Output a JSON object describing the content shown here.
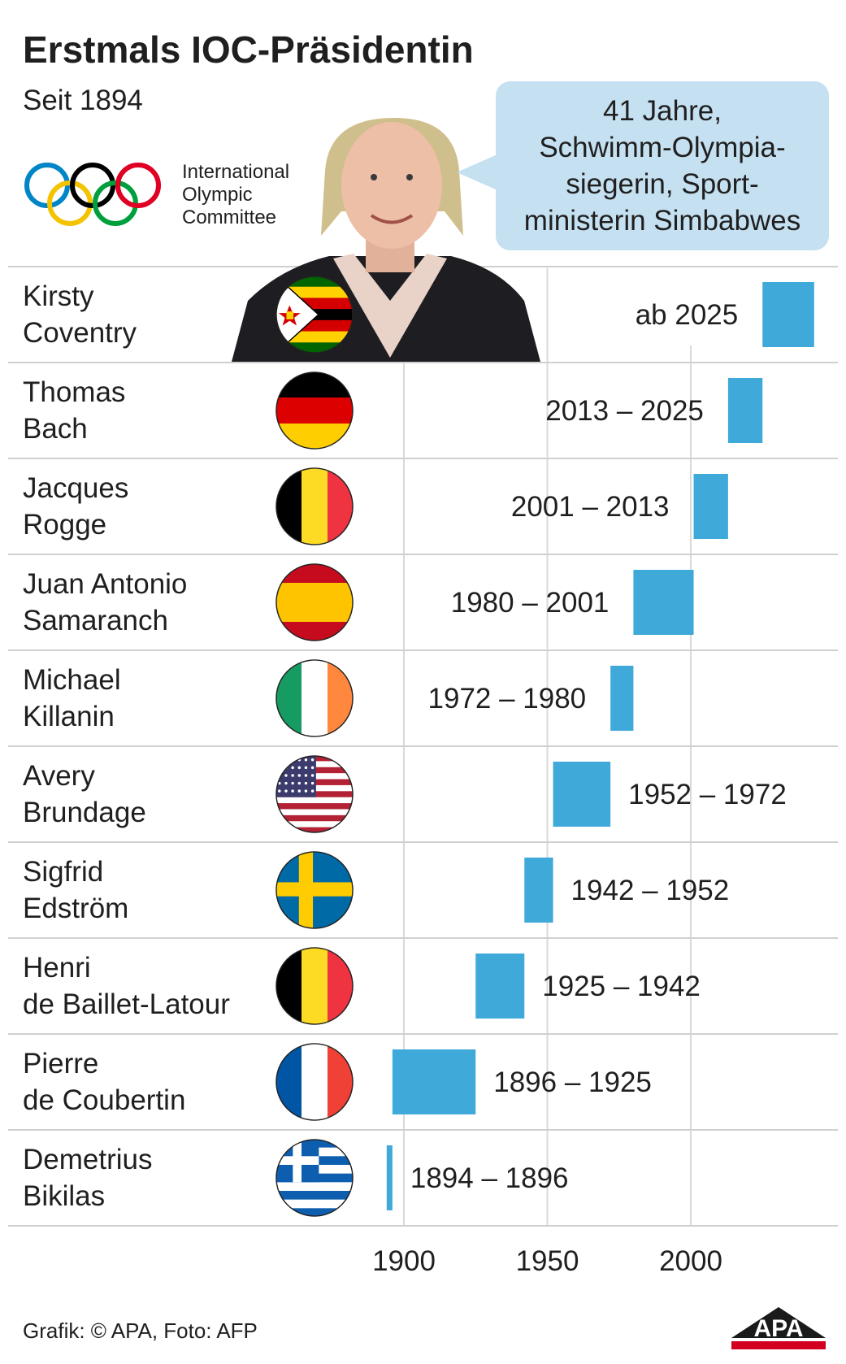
{
  "header": {
    "title": "Erstmals IOC-Präsidentin",
    "subtitle": "Seit 1894"
  },
  "ioc": {
    "text_lines": [
      "International",
      "Olympic",
      "Committee"
    ],
    "ring_colors": [
      "#0085C7",
      "#F4C300",
      "#000000",
      "#009F3D",
      "#DF0024"
    ]
  },
  "bubble": {
    "lines": [
      "41 Jahre,",
      "Schwimm-Olympia-",
      "siegerin, Sport-",
      "ministerin Simbabwes"
    ]
  },
  "colors": {
    "bar": "#3fa9d9",
    "grid": "#d9d9d9",
    "divider": "#d0d0d0",
    "bubble": "#c5e0f0",
    "text": "#1f1f1f"
  },
  "chart_data": {
    "type": "bar",
    "orientation": "horizontal-range",
    "xlim": [
      1894,
      2045
    ],
    "x_ticks": [
      1900,
      1950,
      2000
    ],
    "grid": true,
    "series": [
      {
        "first_name": "Kirsty",
        "last_name": "Coventry",
        "flag": "zimbabwe-flag",
        "start": 2025,
        "end": 2043,
        "label": "ab 2025"
      },
      {
        "first_name": "Thomas",
        "last_name": "Bach",
        "flag": "germany-flag",
        "start": 2013,
        "end": 2025,
        "label": "2013 – 2025"
      },
      {
        "first_name": "Jacques",
        "last_name": "Rogge",
        "flag": "belgium-flag",
        "start": 2001,
        "end": 2013,
        "label": "2001 – 2013"
      },
      {
        "first_name": "Juan Antonio",
        "last_name": "Samaranch",
        "flag": "spain-flag",
        "start": 1980,
        "end": 2001,
        "label": "1980 – 2001"
      },
      {
        "first_name": "Michael",
        "last_name": "Killanin",
        "flag": "ireland-flag",
        "start": 1972,
        "end": 1980,
        "label": "1972 – 1980"
      },
      {
        "first_name": "Avery",
        "last_name": "Brundage",
        "flag": "usa-flag",
        "start": 1952,
        "end": 1972,
        "label": "1952 – 1972"
      },
      {
        "first_name": "Sigfrid",
        "last_name": "Edström",
        "flag": "sweden-flag",
        "start": 1942,
        "end": 1952,
        "label": "1942 – 1952"
      },
      {
        "first_name": "Henri",
        "last_name": "de Baillet-Latour",
        "flag": "belgium-flag",
        "start": 1925,
        "end": 1942,
        "label": "1925 – 1942"
      },
      {
        "first_name": "Pierre",
        "last_name": "de Coubertin",
        "flag": "france-flag",
        "start": 1896,
        "end": 1925,
        "label": "1896 – 1925"
      },
      {
        "first_name": "Demetrius",
        "last_name": "Bikilas",
        "flag": "greece-flag",
        "start": 1894,
        "end": 1896,
        "label": "1894 – 1896"
      }
    ]
  },
  "footer": {
    "credit": "Grafik: © APA, Foto: AFP",
    "logo_text": "APA"
  }
}
